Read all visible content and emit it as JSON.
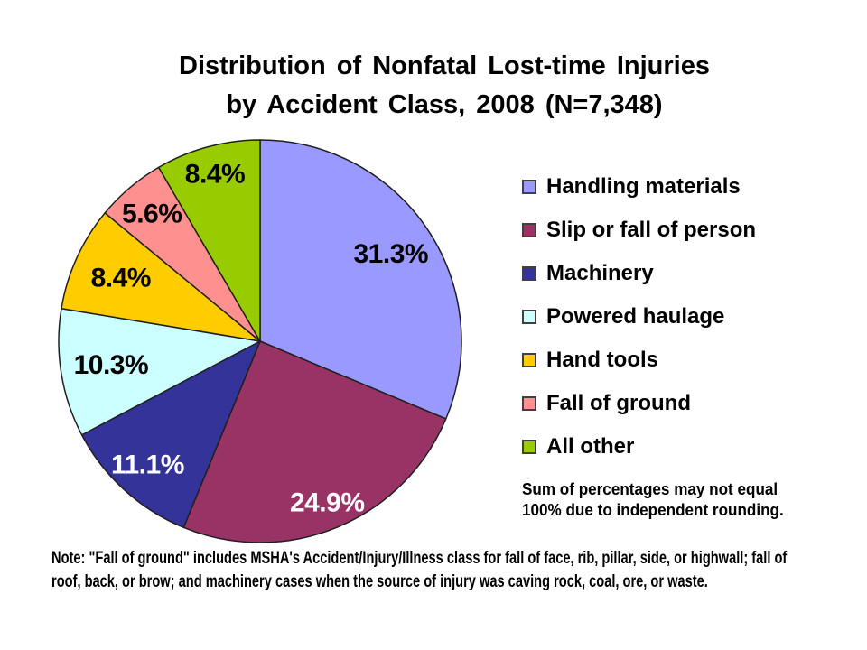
{
  "title": {
    "line1": "Distribution of Nonfatal Lost-time Injuries",
    "line2": "by Accident Class, 2008 (N=7,348)"
  },
  "chart_data": {
    "type": "pie",
    "title": "Distribution of Nonfatal Lost-time Injuries by Accident Class, 2008 (N=7,348)",
    "sample_size_label": "N=7,348",
    "units": "percent",
    "start_angle_deg": 0,
    "direction": "clockwise",
    "legend_position": "right",
    "slices": [
      {
        "label": "Handling materials",
        "value": 31.3,
        "display": "31.3%",
        "color": "#9999FF",
        "label_color": "#000000"
      },
      {
        "label": "Slip or fall of person",
        "value": 24.9,
        "display": "24.9%",
        "color": "#993366",
        "label_color": "#FFFFFF"
      },
      {
        "label": "Machinery",
        "value": 11.1,
        "display": "11.1%",
        "color": "#333399",
        "label_color": "#FFFFFF"
      },
      {
        "label": "Powered haulage",
        "value": 10.3,
        "display": "10.3%",
        "color": "#CCFFFF",
        "label_color": "#000000"
      },
      {
        "label": "Hand tools",
        "value": 8.4,
        "display": "8.4%",
        "color": "#FFCC00",
        "label_color": "#000000"
      },
      {
        "label": "Fall of ground",
        "value": 5.6,
        "display": "5.6%",
        "color": "#FF9090",
        "label_color": "#000000"
      },
      {
        "label": "All other",
        "value": 8.4,
        "display": "8.4%",
        "color": "#99CC00",
        "label_color": "#000000"
      }
    ]
  },
  "notes": {
    "rounding_lines": [
      "Sum of percentages may not equal",
      "100% due to independent rounding."
    ],
    "footnote_lines": [
      "Note: \"Fall of ground\" includes MSHA's Accident/Injury/Illness class for fall of face, rib, pillar, side, or highwall; fall of",
      "roof, back, or brow; and machinery cases when the source of injury was caving rock, coal, ore, or waste."
    ]
  }
}
